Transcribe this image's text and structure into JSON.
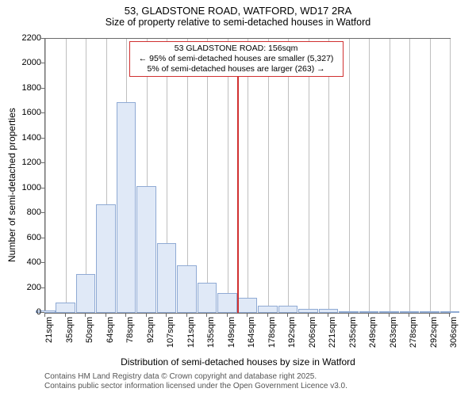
{
  "title": "53, GLADSTONE ROAD, WATFORD, WD17 2RA",
  "subtitle": "Size of property relative to semi-detached houses in Watford",
  "ylabel": "Number of semi-detached properties",
  "xlabel": "Distribution of semi-detached houses by size in Watford",
  "footer_line1": "Contains HM Land Registry data © Crown copyright and database right 2025.",
  "footer_line2": "Contains public sector information licensed under the Open Government Licence v3.0.",
  "annotation": {
    "line1": "53 GLADSTONE ROAD: 156sqm",
    "line2": "← 95% of semi-detached houses are smaller (5,327)",
    "line3": "5% of semi-detached houses are larger (263) →"
  },
  "chart": {
    "type": "histogram",
    "ylim": [
      0,
      2200
    ],
    "ytick_step": 200,
    "bar_fill": "#e0e9f7",
    "bar_stroke": "#8faad4",
    "grid_color": "#bfbfbf",
    "axis_color": "#6b6b6b",
    "marker_color": "#d03030",
    "marker_x_value": 156,
    "xticks": [
      "21sqm",
      "35sqm",
      "50sqm",
      "64sqm",
      "78sqm",
      "92sqm",
      "107sqm",
      "121sqm",
      "135sqm",
      "149sqm",
      "164sqm",
      "178sqm",
      "192sqm",
      "206sqm",
      "221sqm",
      "235sqm",
      "249sqm",
      "263sqm",
      "278sqm",
      "292sqm",
      "306sqm"
    ],
    "x_min": 21,
    "x_max": 306,
    "bars": [
      {
        "x": 21,
        "v": 20
      },
      {
        "x": 35,
        "v": 80
      },
      {
        "x": 50,
        "v": 310
      },
      {
        "x": 64,
        "v": 870
      },
      {
        "x": 78,
        "v": 1690
      },
      {
        "x": 92,
        "v": 1020
      },
      {
        "x": 107,
        "v": 560
      },
      {
        "x": 121,
        "v": 380
      },
      {
        "x": 135,
        "v": 240
      },
      {
        "x": 149,
        "v": 160
      },
      {
        "x": 164,
        "v": 120
      },
      {
        "x": 178,
        "v": 60
      },
      {
        "x": 192,
        "v": 55
      },
      {
        "x": 206,
        "v": 35
      },
      {
        "x": 221,
        "v": 30
      },
      {
        "x": 235,
        "v": 12
      },
      {
        "x": 249,
        "v": 10
      },
      {
        "x": 263,
        "v": 5
      },
      {
        "x": 278,
        "v": 5
      },
      {
        "x": 292,
        "v": 3
      },
      {
        "x": 306,
        "v": 3
      }
    ]
  }
}
